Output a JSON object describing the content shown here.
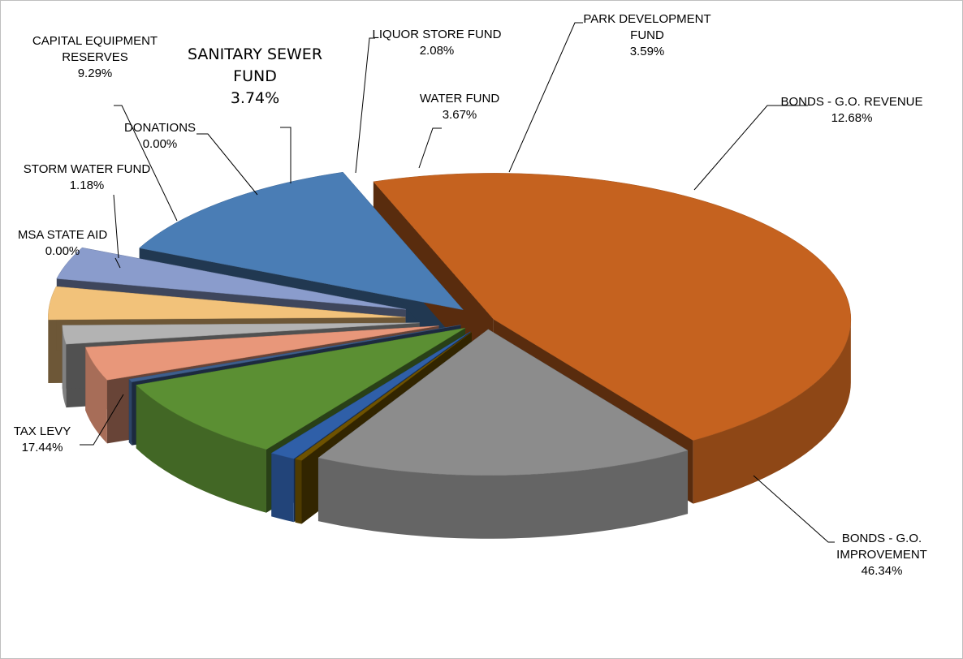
{
  "chart_data": {
    "type": "pie",
    "style": "3d-exploded",
    "title": "",
    "slices": [
      {
        "name": "BONDS - G.O. REVENUE",
        "value": 12.68,
        "label_lines": [
          "BONDS - G.O. REVENUE",
          "12.68%"
        ],
        "color": "#4a7db5"
      },
      {
        "name": "BONDS - G.O. IMPROVEMENT",
        "value": 46.34,
        "label_lines": [
          "BONDS - G.O.",
          "IMPROVEMENT",
          "46.34%"
        ],
        "color": "#c5621f"
      },
      {
        "name": "TAX LEVY",
        "value": 17.44,
        "label_lines": [
          "TAX LEVY",
          "17.44%"
        ],
        "color": "#8c8c8c"
      },
      {
        "name": "MSA STATE AID",
        "value": 0.0,
        "label_lines": [
          "MSA STATE AID",
          "0.00%"
        ],
        "color": "#6e5200"
      },
      {
        "name": "STORM WATER FUND",
        "value": 1.18,
        "label_lines": [
          "STORM WATER FUND",
          "1.18%"
        ],
        "color": "#2f5fa8"
      },
      {
        "name": "CAPITAL EQUIPMENT RESERVES",
        "value": 9.29,
        "label_lines": [
          "CAPITAL EQUIPMENT",
          "RESERVES",
          "9.29%"
        ],
        "color": "#5b8f33"
      },
      {
        "name": "DONATIONS",
        "value": 0.0,
        "label_lines": [
          "DONATIONS",
          "0.00%"
        ],
        "color": "#3e5e8c"
      },
      {
        "name": "SANITARY SEWER FUND",
        "value": 3.74,
        "label_lines": [
          "SANITARY SEWER",
          "FUND",
          "3.74%"
        ],
        "color": "#e8977a"
      },
      {
        "name": "LIQUOR STORE FUND",
        "value": 2.08,
        "label_lines": [
          "LIQUOR STORE FUND",
          "2.08%"
        ],
        "color": "#b3b3b3"
      },
      {
        "name": "WATER FUND",
        "value": 3.67,
        "label_lines": [
          "WATER FUND",
          "3.67%"
        ],
        "color": "#f2c27a"
      },
      {
        "name": "PARK DEVELOPMENT FUND",
        "value": 3.59,
        "label_lines": [
          "PARK DEVELOPMENT",
          "FUND",
          "3.59%"
        ],
        "color": "#8a9ccc"
      }
    ],
    "legend": "none"
  }
}
